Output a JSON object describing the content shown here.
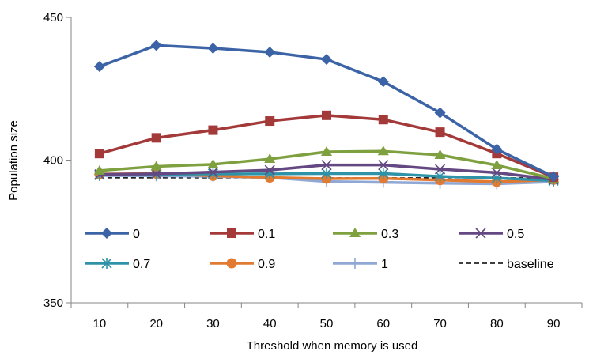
{
  "chart_data": {
    "type": "line",
    "title": "",
    "xlabel": "Threshold when memory is used",
    "ylabel": "Population size",
    "x": [
      10,
      20,
      30,
      40,
      50,
      60,
      70,
      80,
      90
    ],
    "ylim": [
      350,
      450
    ],
    "yticks": [
      350,
      400,
      450
    ],
    "grid": false,
    "legend": "inside-bottom",
    "series": [
      {
        "name": "0",
        "color": "#3b63a6",
        "marker": "diamond",
        "values": [
          432.8,
          440.2,
          439.2,
          437.8,
          435.3,
          427.5,
          416.6,
          403.8,
          394.2
        ]
      },
      {
        "name": "0.1",
        "color": "#a33a39",
        "marker": "square",
        "values": [
          402.3,
          407.8,
          410.5,
          413.7,
          415.7,
          414.2,
          409.8,
          402.3,
          394.0
        ]
      },
      {
        "name": "0.3",
        "color": "#7ea03f",
        "marker": "triangle",
        "values": [
          396.3,
          397.8,
          398.5,
          400.4,
          402.9,
          403.1,
          401.8,
          398.2,
          393.5
        ]
      },
      {
        "name": "0.5",
        "color": "#634882",
        "marker": "x",
        "values": [
          395.0,
          395.2,
          395.8,
          396.5,
          398.3,
          398.3,
          396.8,
          395.6,
          393.2
        ]
      },
      {
        "name": "0.7",
        "color": "#2e93a8",
        "marker": "star",
        "values": [
          394.8,
          395.0,
          395.2,
          395.2,
          395.3,
          395.3,
          394.3,
          393.7,
          392.8
        ]
      },
      {
        "name": "0.9",
        "color": "#e27a31",
        "marker": "circle",
        "values": [
          395.1,
          395.3,
          394.5,
          393.9,
          393.5,
          393.6,
          393.0,
          392.4,
          393.1
        ]
      },
      {
        "name": "1",
        "color": "#8fa8d4",
        "marker": "plus",
        "values": [
          394.6,
          394.5,
          394.3,
          393.9,
          392.5,
          392.2,
          391.9,
          391.7,
          392.4
        ]
      },
      {
        "name": "baseline",
        "color": "#000000",
        "marker": "none",
        "dashed": true,
        "values": [
          393.8,
          393.8,
          393.8,
          393.8,
          393.8,
          393.8,
          393.8,
          393.8,
          393.8
        ]
      }
    ]
  }
}
